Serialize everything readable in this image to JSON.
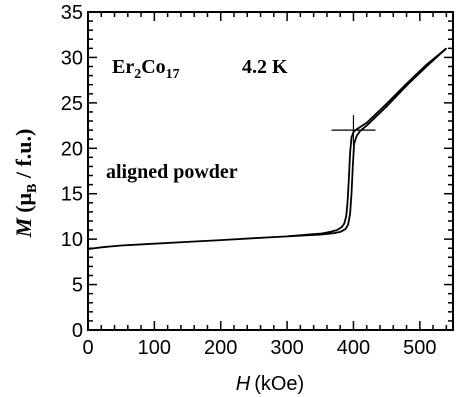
{
  "chart_data": {
    "type": "line",
    "xlabel_var": "H",
    "xlabel_unit": "(kOe)",
    "ylabel_var": "M",
    "ylabel_unit": "(μ",
    "ylabel_sub": "B",
    "ylabel_rest": " / f.u.)",
    "xlim": [
      0,
      550
    ],
    "ylim": [
      0,
      35
    ],
    "x_ticks": [
      0,
      100,
      200,
      300,
      400,
      500
    ],
    "y_ticks": [
      0,
      5,
      10,
      15,
      20,
      25,
      30,
      35
    ],
    "grid": false,
    "series": [
      {
        "x": [
          0,
          20,
          50,
          100,
          150,
          200,
          250,
          300,
          330,
          350,
          365,
          375,
          382,
          386,
          389,
          391,
          393,
          395,
          397,
          400,
          405,
          420,
          450,
          480,
          510,
          540
        ],
        "y": [
          8.9,
          9.1,
          9.3,
          9.5,
          9.7,
          9.9,
          10.1,
          10.3,
          10.5,
          10.6,
          10.8,
          11.0,
          11.3,
          11.7,
          12.5,
          14.0,
          16.5,
          19.5,
          21.2,
          21.8,
          22.1,
          22.8,
          24.9,
          27.1,
          29.2,
          31.0
        ]
      },
      {
        "x": [
          540,
          510,
          480,
          450,
          420,
          410,
          405,
          401,
          399,
          397,
          395,
          392,
          388,
          380,
          370,
          350,
          300
        ],
        "y": [
          31.0,
          29.0,
          26.9,
          24.6,
          22.5,
          21.9,
          21.4,
          20.5,
          18.0,
          15.0,
          12.8,
          11.6,
          11.1,
          10.8,
          10.65,
          10.5,
          10.3
        ]
      }
    ],
    "annotations": {
      "compound_base": "Er",
      "compound_sub1": "2",
      "compound_mid": "Co",
      "compound_sub2": "17",
      "temperature": "4.2 K",
      "sample": "aligned powder"
    },
    "marker_point": [
      400,
      22
    ]
  }
}
